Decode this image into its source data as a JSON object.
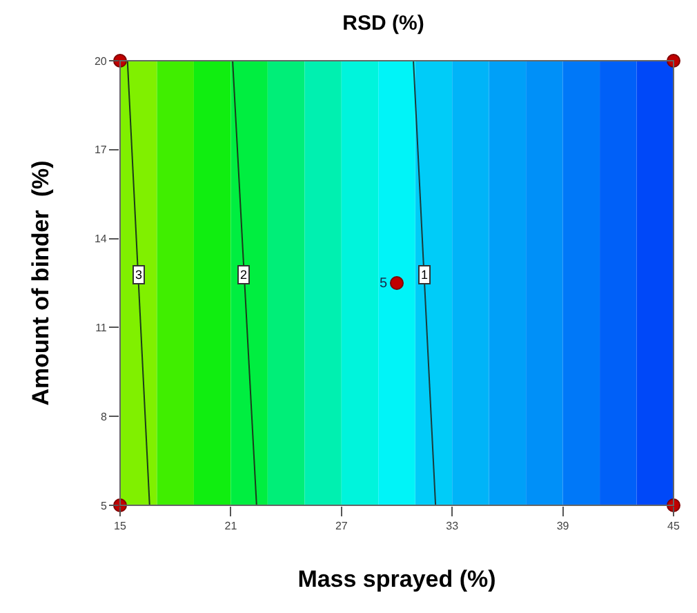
{
  "chart_data": {
    "type": "line",
    "title": "RSD (%)",
    "xlabel": "Mass sprayed (%)",
    "ylabel": "Amount of binder  (%)",
    "xlim": [
      15,
      45
    ],
    "xticks": [
      15,
      21,
      27,
      33,
      39,
      45
    ],
    "ylim": [
      5,
      20
    ],
    "yticks": [
      5,
      8,
      11,
      14,
      17,
      20
    ],
    "grid": false,
    "legend": false,
    "line_style": "solid",
    "series": [
      {
        "name": "3",
        "color": "#1a3a1a",
        "x": [
          15.4,
          16.6
        ],
        "values": [
          20,
          5
        ],
        "marker": "none"
      },
      {
        "name": "2",
        "color": "#1a3a1a",
        "x": [
          21.1,
          22.4
        ],
        "values": [
          20,
          5
        ],
        "marker": "none"
      },
      {
        "name": "1",
        "color": "#1a3a3a",
        "x": [
          30.9,
          32.1
        ],
        "values": [
          20,
          5
        ],
        "marker": "none"
      },
      {
        "type": "scatter",
        "color": "#c00000",
        "x": [
          15,
          15,
          45,
          45,
          30
        ],
        "values": [
          5,
          20,
          5,
          20,
          12.5
        ],
        "marker": "circle"
      }
    ],
    "annotations": [
      {
        "text": "5",
        "x": 30,
        "y": 12.5
      }
    ],
    "bands": [
      {
        "axis": "x",
        "from": 15,
        "to": 17,
        "color": "#80f000"
      },
      {
        "axis": "x",
        "from": 17,
        "to": 19,
        "color": "#40ee00"
      },
      {
        "axis": "x",
        "from": 19,
        "to": 21,
        "color": "#10ee10"
      },
      {
        "axis": "x",
        "from": 21,
        "to": 23,
        "color": "#00ee40"
      },
      {
        "axis": "x",
        "from": 23,
        "to": 25,
        "color": "#00ee78"
      },
      {
        "axis": "x",
        "from": 25,
        "to": 27,
        "color": "#00f0b0"
      },
      {
        "axis": "x",
        "from": 27,
        "to": 29,
        "color": "#00f4dc"
      },
      {
        "axis": "x",
        "from": 29,
        "to": 31,
        "color": "#00f4f8"
      },
      {
        "axis": "x",
        "from": 31,
        "to": 33,
        "color": "#00ccf8"
      },
      {
        "axis": "x",
        "from": 33,
        "to": 35,
        "color": "#00b4f8"
      },
      {
        "axis": "x",
        "from": 35,
        "to": 37,
        "color": "#00a0f8"
      },
      {
        "axis": "x",
        "from": 37,
        "to": 39,
        "color": "#0090f8"
      },
      {
        "axis": "x",
        "from": 39,
        "to": 41,
        "color": "#0078f8"
      },
      {
        "axis": "x",
        "from": 41,
        "to": 43,
        "color": "#0060f8"
      },
      {
        "axis": "x",
        "from": 43,
        "to": 45,
        "color": "#0048f8"
      }
    ]
  }
}
